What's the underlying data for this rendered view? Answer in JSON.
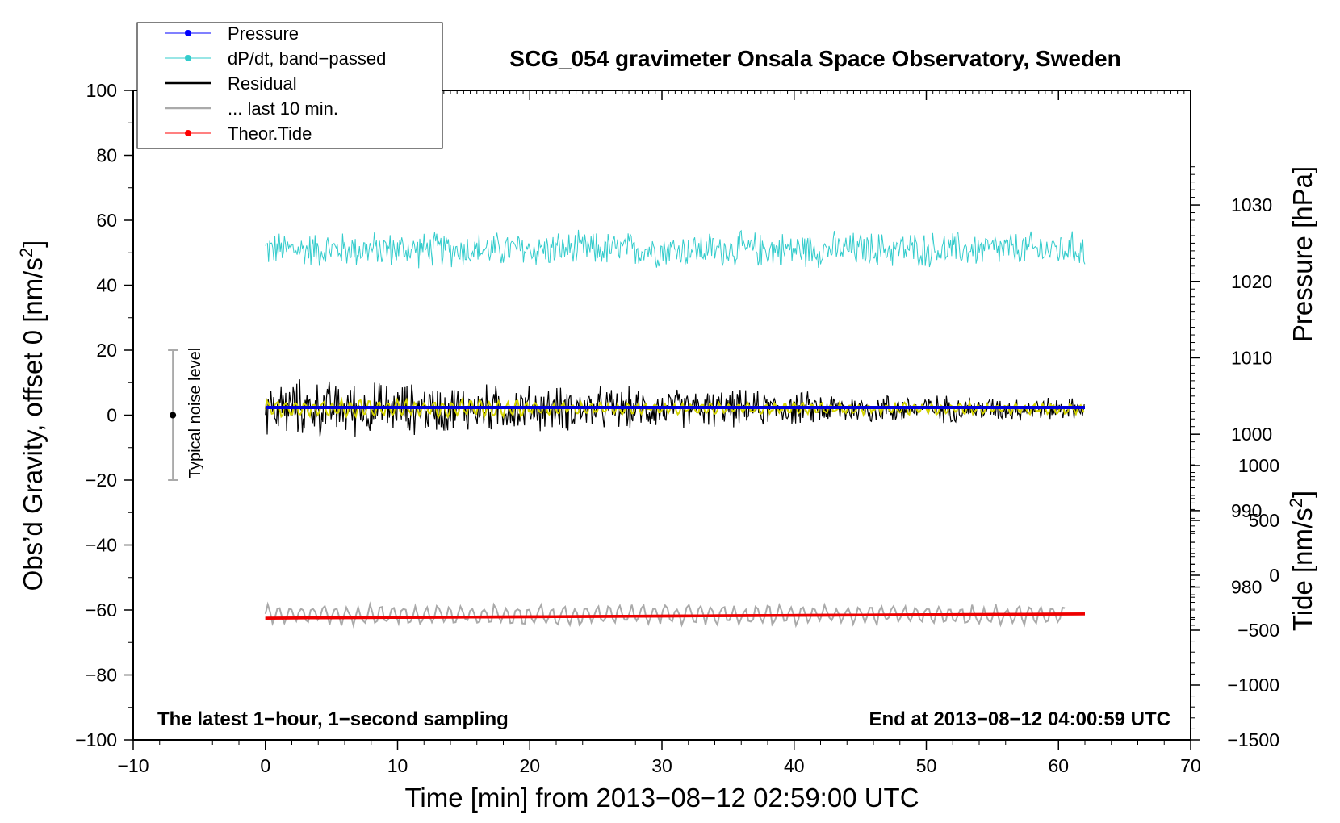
{
  "chart_data": {
    "type": "line",
    "title": "SCG_054 gravimeter Onsala Space Observatory, Sweden",
    "xlabel": "Time [min] from 2013−08−12 02:59:00 UTC",
    "ylabel_main": "Obs’d Gravity, offset 0 [nm/s",
    "ylabel_pressure": "Pressure [hPa]",
    "ylabel_tide": "Tide [nm/s",
    "unit_superscript": "2",
    "unit_close": "]",
    "xlim": [
      -10,
      70
    ],
    "ylim": [
      -100,
      100
    ],
    "pressure_lim": [
      960,
      1045
    ],
    "tide_lim": [
      -1500,
      1000
    ],
    "x_ticks": [
      "−10",
      "0",
      "10",
      "20",
      "30",
      "40",
      "50",
      "60",
      "70"
    ],
    "y_ticks": [
      "100",
      "80",
      "60",
      "40",
      "20",
      "0",
      "−20",
      "−40",
      "−60",
      "−80",
      "−100"
    ],
    "pressure_ticks": [
      "1030",
      "1020",
      "1010",
      "1000",
      "990",
      "980"
    ],
    "tide_ticks": [
      "1000",
      "500",
      "0",
      "−500",
      "−1000",
      "−1500"
    ],
    "bottom_left_text": "The latest 1−hour, 1−second sampling",
    "bottom_right_text": "End at 2013−08−12 04:00:59 UTC",
    "noise_label": "Typical noise level",
    "noise_bar": {
      "x": -7,
      "center": 0,
      "half_range": 20
    },
    "legend": [
      {
        "label": "Pressure",
        "color": "#0000ff",
        "marker": true
      },
      {
        "label": "dP/dt, band−passed",
        "color": "#33cccc",
        "marker": true
      },
      {
        "label": "Residual",
        "color": "#000000",
        "marker": false
      },
      {
        "label": "... last 10 min.",
        "color": "#aaaaaa",
        "marker": false
      },
      {
        "label": "Theor.Tide",
        "color": "#ff0000",
        "marker": true
      }
    ],
    "series": [
      {
        "name": "Pressure",
        "color": "#0000dd",
        "axis": "pressure",
        "t": [
          0,
          62
        ],
        "values": [
          1003.5,
          1003.5
        ]
      },
      {
        "name": "dP/dt, band−passed",
        "color": "#33cccc",
        "axis": "main",
        "t_range": [
          0,
          62
        ],
        "center": 51,
        "amplitude": 4.5
      },
      {
        "name": "Residual",
        "color": "#000000",
        "axis": "main",
        "t_range": [
          0,
          62
        ],
        "center": 2,
        "amplitude_start": 7,
        "amplitude_end": 2.5
      },
      {
        "name": "Residual smoothed",
        "color": "#d4d400",
        "axis": "main",
        "t_range": [
          0,
          62
        ],
        "center": 2,
        "amplitude": 1.5
      },
      {
        "name": "... last 10 min.",
        "color": "#aaaaaa",
        "axis": "main",
        "t_range": [
          0,
          60.5
        ],
        "center": -61.5,
        "amplitude": 3
      },
      {
        "name": "Theor.Tide",
        "color": "#ee0000",
        "axis": "main",
        "t": [
          0,
          62
        ],
        "values": [
          -62.5,
          -61.2
        ]
      }
    ]
  }
}
